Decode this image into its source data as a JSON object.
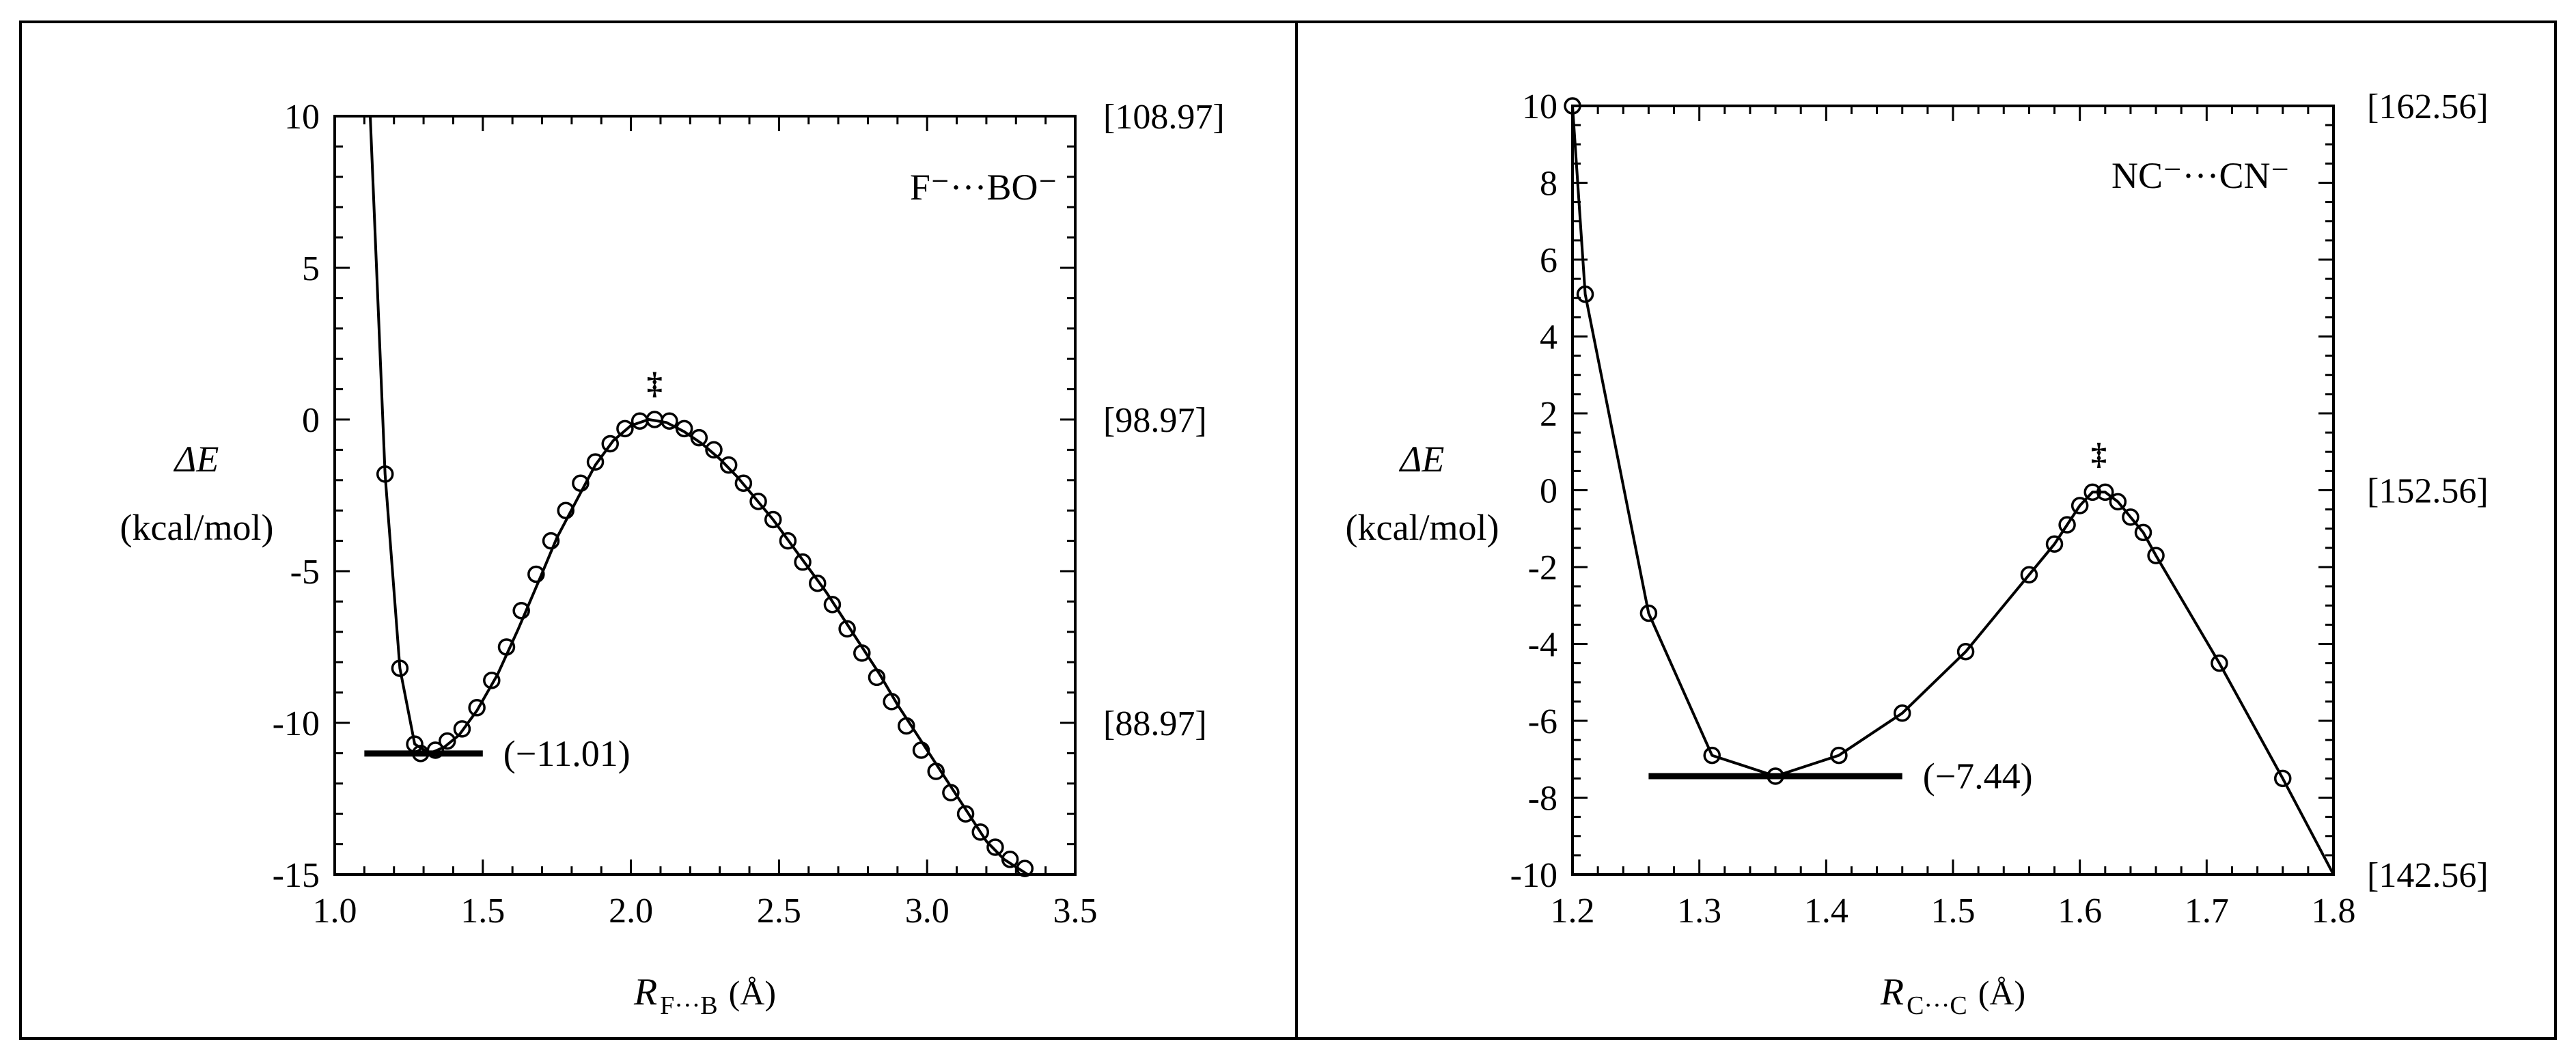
{
  "chart_data": [
    {
      "type": "line",
      "panel": "left",
      "species_label": "F⁻···BO⁻",
      "ylabel": "ΔE",
      "ylabel_unit": "(kcal/mol)",
      "xlabel_main": "R",
      "xlabel_sub": "F···B",
      "xlabel_unit": "(Å)",
      "xlim": [
        1.0,
        3.5
      ],
      "ylim": [
        -15,
        10
      ],
      "x_ticks": [
        1.0,
        1.5,
        2.0,
        2.5,
        3.0,
        3.5
      ],
      "x_tick_labels": [
        "1.0",
        "1.5",
        "2.0",
        "2.5",
        "3.0",
        "3.5"
      ],
      "y_ticks": [
        10,
        5,
        0,
        -5,
        -10,
        -15
      ],
      "y_tick_labels": [
        "10",
        "5",
        "0",
        "-5",
        "-10",
        "-15"
      ],
      "right_axis_labels": [
        {
          "y": 10,
          "text": "[108.97]"
        },
        {
          "y": 0,
          "text": "[98.97]"
        },
        {
          "y": -10,
          "text": "[88.97]"
        }
      ],
      "minimum": {
        "value": -11.01,
        "label": "(−11.01)",
        "x_start": 1.1,
        "x_end": 1.5
      },
      "ts_marker": {
        "x": 2.08,
        "y": 0,
        "symbol": "‡"
      },
      "curve_x": [
        1.12,
        1.17,
        1.22,
        1.27,
        1.32,
        1.37,
        1.42,
        1.48,
        1.55,
        1.62,
        1.69,
        1.75,
        1.82,
        1.88,
        1.94,
        2.0,
        2.06,
        2.12,
        2.18,
        2.24,
        2.3,
        2.36,
        2.42,
        2.48,
        2.54,
        2.6,
        2.66,
        2.72,
        2.78,
        2.84,
        2.9,
        2.96,
        3.02,
        3.08,
        3.14,
        3.2,
        3.26,
        3.34
      ],
      "curve_y": [
        10,
        -1.8,
        -8.2,
        -10.7,
        -11.01,
        -10.8,
        -10.4,
        -9.6,
        -8.4,
        -6.9,
        -5.3,
        -3.9,
        -2.6,
        -1.5,
        -0.7,
        -0.2,
        0.0,
        -0.1,
        -0.4,
        -0.8,
        -1.3,
        -1.9,
        -2.6,
        -3.3,
        -4.1,
        -4.9,
        -5.7,
        -6.6,
        -7.5,
        -8.4,
        -9.4,
        -10.3,
        -11.2,
        -12.1,
        -13.0,
        -13.9,
        -14.5,
        -15.0
      ],
      "points_x": [
        1.17,
        1.22,
        1.27,
        1.29,
        1.34,
        1.38,
        1.43,
        1.48,
        1.53,
        1.58,
        1.63,
        1.68,
        1.73,
        1.78,
        1.83,
        1.88,
        1.93,
        1.98,
        2.03,
        2.08,
        2.13,
        2.18,
        2.23,
        2.28,
        2.33,
        2.38,
        2.43,
        2.48,
        2.53,
        2.58,
        2.63,
        2.68,
        2.73,
        2.78,
        2.83,
        2.88,
        2.93,
        2.98,
        3.03,
        3.08,
        3.13,
        3.18,
        3.23,
        3.28,
        3.33
      ],
      "points_y": [
        -1.8,
        -8.2,
        -10.7,
        -11.01,
        -10.9,
        -10.6,
        -10.2,
        -9.5,
        -8.6,
        -7.5,
        -6.3,
        -5.1,
        -4.0,
        -3.0,
        -2.1,
        -1.4,
        -0.8,
        -0.3,
        -0.05,
        0.0,
        -0.05,
        -0.3,
        -0.6,
        -1.0,
        -1.5,
        -2.1,
        -2.7,
        -3.3,
        -4.0,
        -4.7,
        -5.4,
        -6.1,
        -6.9,
        -7.7,
        -8.5,
        -9.3,
        -10.1,
        -10.9,
        -11.6,
        -12.3,
        -13.0,
        -13.6,
        -14.1,
        -14.5,
        -14.8
      ]
    },
    {
      "type": "line",
      "panel": "right",
      "species_label": "NC⁻···CN⁻",
      "ylabel": "ΔE",
      "ylabel_unit": "(kcal/mol)",
      "xlabel_main": "R",
      "xlabel_sub": "C···C",
      "xlabel_unit": "(Å)",
      "xlim": [
        1.2,
        1.8
      ],
      "ylim": [
        -10,
        10
      ],
      "x_ticks": [
        1.2,
        1.3,
        1.4,
        1.5,
        1.6,
        1.7,
        1.8
      ],
      "x_tick_labels": [
        "1.2",
        "1.3",
        "1.4",
        "1.5",
        "1.6",
        "1.7",
        "1.8"
      ],
      "y_ticks": [
        10,
        8,
        6,
        4,
        2,
        0,
        -2,
        -4,
        -6,
        -8,
        -10
      ],
      "y_tick_labels": [
        "10",
        "8",
        "6",
        "4",
        "2",
        "0",
        "-2",
        "-4",
        "-6",
        "-8",
        "-10"
      ],
      "right_axis_labels": [
        {
          "y": 10,
          "text": "[162.56]"
        },
        {
          "y": 0,
          "text": "[152.56]"
        },
        {
          "y": -10,
          "text": "[142.56]"
        }
      ],
      "minimum": {
        "value": -7.44,
        "label": "(−7.44)",
        "x_start": 1.26,
        "x_end": 1.46
      },
      "ts_marker": {
        "x": 1.615,
        "y": 0,
        "symbol": "‡"
      },
      "curve_x": [
        1.2,
        1.21,
        1.26,
        1.31,
        1.36,
        1.41,
        1.46,
        1.51,
        1.56,
        1.58,
        1.59,
        1.6,
        1.61,
        1.62,
        1.63,
        1.64,
        1.65,
        1.66,
        1.71,
        1.76,
        1.8
      ],
      "curve_y": [
        10,
        5.1,
        -3.2,
        -6.9,
        -7.44,
        -6.9,
        -5.8,
        -4.2,
        -2.2,
        -1.4,
        -0.9,
        -0.4,
        -0.05,
        -0.05,
        -0.3,
        -0.7,
        -1.1,
        -1.7,
        -4.5,
        -7.5,
        -10
      ],
      "points_x": [
        1.2,
        1.21,
        1.26,
        1.31,
        1.36,
        1.41,
        1.46,
        1.51,
        1.56,
        1.58,
        1.59,
        1.6,
        1.61,
        1.62,
        1.63,
        1.64,
        1.65,
        1.66,
        1.71,
        1.76
      ],
      "points_y": [
        10,
        5.1,
        -3.2,
        -6.9,
        -7.44,
        -6.9,
        -5.8,
        -4.2,
        -2.2,
        -1.4,
        -0.9,
        -0.4,
        -0.05,
        -0.05,
        -0.3,
        -0.7,
        -1.1,
        -1.7,
        -4.5,
        -7.5
      ]
    }
  ]
}
